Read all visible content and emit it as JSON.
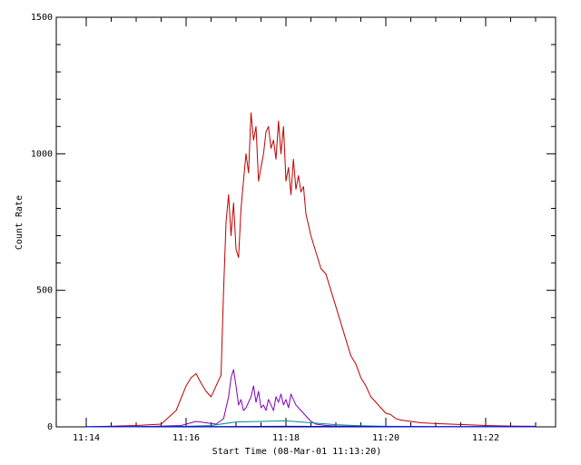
{
  "chart_data": {
    "type": "line",
    "title": "",
    "xlabel": "Start Time (08-Mar-01 11:13:20)",
    "ylabel": "Count Rate",
    "xlim": [
      13.4,
      23.4
    ],
    "ylim": [
      0,
      1500
    ],
    "x_unit": "minutes after 11:00",
    "x_ticks": [
      {
        "value": 14,
        "label": "11:14"
      },
      {
        "value": 16,
        "label": "11:16"
      },
      {
        "value": 18,
        "label": "11:18"
      },
      {
        "value": 20,
        "label": "11:20"
      },
      {
        "value": 22,
        "label": "11:22"
      }
    ],
    "y_ticks": [
      {
        "value": 0,
        "label": "0"
      },
      {
        "value": 500,
        "label": "500"
      },
      {
        "value": 1000,
        "label": "1000"
      },
      {
        "value": 1500,
        "label": "1500"
      }
    ],
    "grid": false,
    "legend": "none",
    "series": [
      {
        "color": "#c00000",
        "x": [
          14.0,
          15.0,
          15.5,
          15.8,
          16.0,
          16.1,
          16.2,
          16.3,
          16.4,
          16.5,
          16.6,
          16.7,
          16.75,
          16.8,
          16.85,
          16.9,
          16.95,
          17.0,
          17.05,
          17.1,
          17.15,
          17.2,
          17.25,
          17.3,
          17.35,
          17.4,
          17.45,
          17.5,
          17.55,
          17.6,
          17.65,
          17.7,
          17.75,
          17.8,
          17.85,
          17.9,
          17.95,
          18.0,
          18.05,
          18.1,
          18.15,
          18.2,
          18.25,
          18.3,
          18.35,
          18.4,
          18.5,
          18.6,
          18.7,
          18.8,
          18.9,
          19.0,
          19.1,
          19.2,
          19.3,
          19.4,
          19.5,
          19.6,
          19.7,
          19.8,
          19.9,
          20.0,
          20.1,
          20.2,
          20.3,
          20.5,
          20.7,
          21.0,
          21.3,
          21.6,
          22.0,
          22.5,
          23.0
        ],
        "y": [
          0,
          5,
          10,
          60,
          150,
          180,
          195,
          160,
          130,
          110,
          150,
          190,
          500,
          750,
          850,
          700,
          820,
          650,
          620,
          800,
          900,
          1000,
          930,
          1150,
          1050,
          1100,
          900,
          950,
          1000,
          1080,
          1100,
          1020,
          1050,
          980,
          1120,
          1000,
          1100,
          900,
          950,
          850,
          980,
          870,
          920,
          860,
          880,
          780,
          700,
          640,
          580,
          560,
          500,
          440,
          380,
          320,
          260,
          230,
          180,
          150,
          110,
          90,
          70,
          50,
          45,
          30,
          25,
          20,
          15,
          12,
          10,
          8,
          5,
          3,
          2
        ]
      },
      {
        "color": "#8000c0",
        "x": [
          14.0,
          15.0,
          15.9,
          16.0,
          16.2,
          16.4,
          16.6,
          16.75,
          16.85,
          16.9,
          16.95,
          17.0,
          17.05,
          17.1,
          17.15,
          17.2,
          17.3,
          17.35,
          17.4,
          17.45,
          17.5,
          17.55,
          17.6,
          17.65,
          17.7,
          17.75,
          17.8,
          17.85,
          17.9,
          17.95,
          18.0,
          18.05,
          18.1,
          18.15,
          18.2,
          18.3,
          18.4,
          18.5,
          18.6,
          18.8,
          19.0,
          19.5,
          20.0,
          21.0,
          22.0,
          23.0
        ],
        "y": [
          0,
          0,
          5,
          10,
          20,
          15,
          10,
          30,
          110,
          180,
          210,
          150,
          80,
          100,
          60,
          70,
          110,
          150,
          90,
          130,
          70,
          80,
          60,
          100,
          80,
          60,
          110,
          90,
          120,
          80,
          100,
          70,
          120,
          100,
          80,
          60,
          40,
          20,
          10,
          5,
          3,
          2,
          1,
          0,
          0,
          0
        ]
      },
      {
        "color": "#009090",
        "x": [
          14.0,
          16.0,
          16.5,
          17.0,
          17.5,
          18.0,
          18.5,
          19.0,
          19.5,
          20.0,
          21.0,
          22.0,
          23.0
        ],
        "y": [
          0,
          2,
          5,
          18,
          20,
          22,
          15,
          8,
          4,
          2,
          1,
          1,
          1
        ]
      },
      {
        "color": "#0000ff",
        "x": [
          14.0,
          16.0,
          18.0,
          20.0,
          22.0,
          23.0
        ],
        "y": [
          1,
          1,
          2,
          1,
          1,
          1
        ]
      }
    ]
  }
}
